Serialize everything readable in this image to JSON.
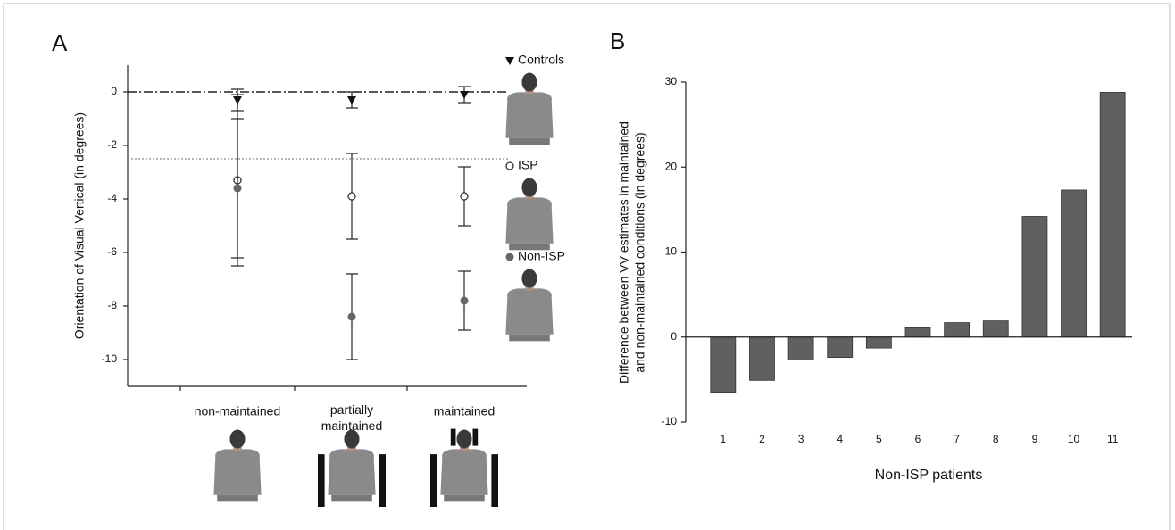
{
  "chart_data": [
    {
      "type": "errorbar",
      "panel": "A",
      "ylabel": "Orientation of Visual Vertical (in degrees)",
      "categories": [
        "non-maintained",
        "partially maintained",
        "maintained"
      ],
      "ylim": [
        -11,
        1
      ],
      "yticks": [
        0,
        -2,
        -4,
        -6,
        -8,
        -10
      ],
      "hlines": [
        {
          "value": 0,
          "style": "dashdot"
        },
        {
          "value": -2.5,
          "style": "dotted"
        }
      ],
      "series": [
        {
          "name": "Controls",
          "marker": "triangle-down",
          "color": "#111111",
          "values": [
            -0.3,
            -0.3,
            -0.1
          ],
          "errors": [
            0.4,
            0.3,
            0.3
          ]
        },
        {
          "name": "ISP",
          "marker": "open-circle",
          "color": "#333333",
          "values": [
            -3.3,
            -3.9,
            -3.9
          ],
          "errors": [
            3.2,
            1.6,
            1.1
          ]
        },
        {
          "name": "Non-ISP",
          "marker": "filled-circle",
          "color": "#666666",
          "values": [
            -3.6,
            -8.4,
            -7.8
          ],
          "errors": [
            2.6,
            1.6,
            1.1
          ]
        }
      ]
    },
    {
      "type": "bar",
      "panel": "B",
      "ylabel": [
        "Difference between VV estimates in maintained",
        "and non-maintained conditions (in degrees)"
      ],
      "xlabel": "Non-ISP patients",
      "categories": [
        "1",
        "2",
        "3",
        "4",
        "5",
        "6",
        "7",
        "8",
        "9",
        "10",
        "11"
      ],
      "values": [
        -6.5,
        -5.1,
        -2.7,
        -2.4,
        -1.3,
        1.1,
        1.7,
        1.9,
        14.2,
        17.3,
        28.8
      ],
      "color": "#606060",
      "ylim": [
        -10,
        30
      ],
      "yticks": [
        -10,
        0,
        10,
        20,
        30
      ]
    }
  ]
}
